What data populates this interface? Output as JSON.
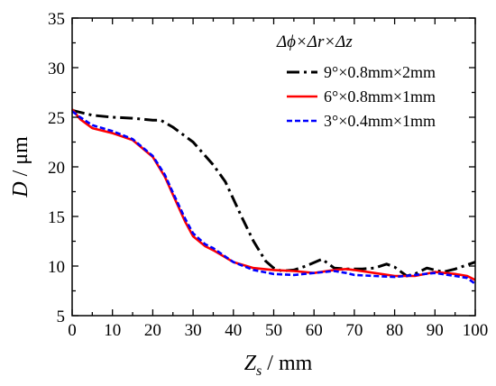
{
  "chart_data": {
    "type": "line",
    "xlabel_main": "Z",
    "xlabel_sub": "s",
    "xlabel_unit": " / mm",
    "ylabel_var": "D",
    "ylabel_unit": " / μm",
    "xlim": [
      0,
      100
    ],
    "ylim": [
      5,
      35
    ],
    "x_ticks": [
      "0",
      "10",
      "20",
      "30",
      "40",
      "50",
      "60",
      "70",
      "80",
      "90",
      "100"
    ],
    "y_ticks": [
      "5",
      "10",
      "15",
      "20",
      "25",
      "30",
      "35"
    ],
    "grid": false,
    "legend": {
      "placement": "top-right",
      "title": "Δϕ×Δr×Δz"
    },
    "series": [
      {
        "name": "9°×0.8mm×2mm",
        "color": "#000000",
        "style": "dash-dot",
        "x": [
          0,
          5,
          10,
          15,
          20,
          22,
          25,
          30,
          35,
          38,
          42,
          45,
          48,
          50,
          52,
          55,
          58,
          62,
          65,
          68,
          72,
          75,
          78,
          80,
          83,
          85,
          88,
          92,
          95,
          100
        ],
        "y": [
          25.7,
          25.2,
          25.0,
          24.9,
          24.7,
          24.7,
          24.0,
          22.5,
          20.2,
          18.5,
          15.0,
          12.5,
          10.5,
          9.8,
          9.5,
          9.6,
          10.0,
          10.7,
          9.8,
          9.7,
          9.7,
          9.8,
          10.2,
          9.9,
          9.0,
          9.2,
          9.8,
          9.4,
          9.7,
          10.4
        ]
      },
      {
        "name": "6°×0.8mm×1mm",
        "color": "#ff0000",
        "style": "solid",
        "x": [
          0,
          2,
          5,
          10,
          15,
          20,
          23,
          25,
          28,
          30,
          33,
          35,
          40,
          45,
          50,
          55,
          60,
          65,
          68,
          70,
          75,
          80,
          85,
          90,
          95,
          98,
          100
        ],
        "y": [
          25.8,
          24.8,
          23.9,
          23.4,
          22.7,
          21.0,
          19.0,
          17.2,
          14.5,
          13.0,
          12.0,
          11.6,
          10.4,
          9.8,
          9.6,
          9.5,
          9.3,
          9.6,
          9.7,
          9.6,
          9.3,
          9.0,
          9.0,
          9.4,
          9.2,
          9.0,
          8.6
        ]
      },
      {
        "name": "3°×0.4mm×1mm",
        "color": "#0000ff",
        "style": "dashed",
        "x": [
          0,
          2,
          5,
          10,
          15,
          20,
          23,
          25,
          28,
          30,
          33,
          35,
          40,
          45,
          50,
          55,
          60,
          65,
          68,
          70,
          75,
          80,
          85,
          90,
          95,
          98,
          100
        ],
        "y": [
          25.6,
          25.0,
          24.2,
          23.6,
          22.8,
          21.1,
          19.2,
          17.4,
          14.8,
          13.3,
          12.2,
          11.8,
          10.4,
          9.6,
          9.2,
          9.1,
          9.3,
          9.5,
          9.3,
          9.1,
          9.0,
          8.9,
          9.1,
          9.3,
          9.0,
          8.8,
          8.2
        ]
      }
    ]
  }
}
